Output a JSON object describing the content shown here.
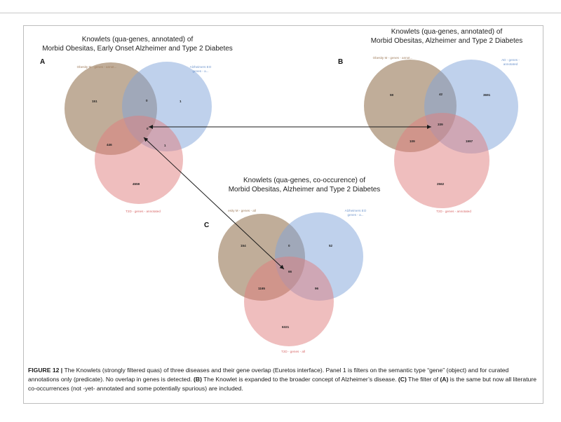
{
  "panel_a": {
    "title_line1": "Knowlets (qua-genes, annotated) of",
    "title_line2": "Morbid Obesitas, Early Onset Alzheimer and Type 2 Diabetes",
    "label": "A",
    "set_obesity": "Obesity M - genes - annot...",
    "set_alz_line1": "Alzheimers EO",
    "set_alz_line2": "genes - a...",
    "set_t2d": "T2D - genes - annotated",
    "values": {
      "obesity_only": "151",
      "ob_alz": "0",
      "alz_only": "1",
      "center": "0",
      "ob_t2d": "446",
      "alz_t2d": "1",
      "t2d_only": "4559"
    }
  },
  "panel_b": {
    "title_line1": "Knowlets (qua-genes, annotated) of",
    "title_line2": "Morbid Obesitas, Alzheimer and Type 2 Diabetes",
    "label": "B",
    "set_obesity": "Obesity M - genes - annot...",
    "set_alz_line1": "AD - genes -",
    "set_alz_line2": "annotated",
    "set_t2d": "T2D - genes - annotated",
    "values": {
      "obesity_only": "59",
      "ob_alz": "42",
      "alz_only": "3691",
      "center": "339",
      "ob_t2d": "109",
      "alz_t2d": "1997",
      "t2d_only": "2562"
    }
  },
  "panel_c": {
    "title_line1": "Knowlets (qua-genes, co-occurence) of",
    "title_line2": "Morbid Obesitas, Alzheimer and Type 2 Diabetes",
    "label": "C",
    "set_obesity": "esity M - genes - all",
    "set_alz_line1": "Alzheimers EO",
    "set_alz_line2": "genes - a...",
    "set_t2d": "T2D - genes - all",
    "values": {
      "obesity_only": "154",
      "ob_alz": "0",
      "alz_only": "52",
      "center": "66",
      "ob_t2d": "1165",
      "alz_t2d": "96",
      "t2d_only": "6321"
    }
  },
  "caption": {
    "fig_label": "FIGURE 12 |",
    "text1": " The Knowlets (strongly filtered quas) of three diseases and their gene overlap (Euretos interface). Panel 1 is filters on the semantic type “gene” (object) and for curated annotations only (predicate). No overlap in genes is detected. ",
    "b_ref": "(B)",
    "text2": " The Knowlet is expanded to the broader concept of Alzheimer’s disease. ",
    "c_ref": "(C)",
    "text3": " The filter of ",
    "a_ref": "(A)",
    "text4": " is the same but now all literature co-occurrences (not -yet- annotated and some potentially spurious) are included."
  },
  "colors": {
    "obesity": "#8c6a46",
    "alzheimer": "#7fa3d9",
    "t2d": "#df7e7e",
    "obesity_label": "#a07e5e",
    "alzheimer_label": "#6f95cc",
    "t2d_label": "#d86a6a",
    "arrow": "#1a1a1a"
  }
}
